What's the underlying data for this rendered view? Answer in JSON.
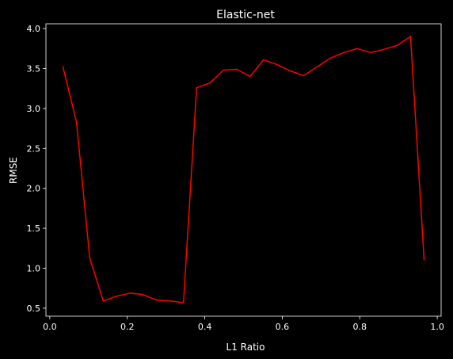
{
  "chart_data": {
    "type": "line",
    "title": "Elastic-net",
    "xlabel": "L1 Ratio",
    "ylabel": "RMSE",
    "xlim": [
      -0.01,
      1.01
    ],
    "ylim": [
      0.4,
      4.06
    ],
    "xticks": [
      0.0,
      0.2,
      0.4,
      0.6,
      0.8,
      1.0
    ],
    "xtick_labels": [
      "0.0",
      "0.2",
      "0.4",
      "0.6",
      "0.8",
      "1.0"
    ],
    "yticks": [
      0.5,
      1.0,
      1.5,
      2.0,
      2.5,
      3.0,
      3.5,
      4.0
    ],
    "ytick_labels": [
      "0.5",
      "1.0",
      "1.5",
      "2.0",
      "2.5",
      "3.0",
      "3.5",
      "4.0"
    ],
    "grid": false,
    "legend": "none",
    "background_color": "#000000",
    "foreground_color": "#ffffff",
    "series": [
      {
        "color": "#ff0000",
        "x": [
          0.034,
          0.069,
          0.103,
          0.138,
          0.172,
          0.207,
          0.241,
          0.276,
          0.31,
          0.345,
          0.379,
          0.414,
          0.448,
          0.483,
          0.517,
          0.552,
          0.586,
          0.621,
          0.655,
          0.69,
          0.724,
          0.759,
          0.793,
          0.828,
          0.862,
          0.897,
          0.931,
          0.966
        ],
        "y": [
          3.52,
          2.83,
          1.13,
          0.59,
          0.65,
          0.69,
          0.67,
          0.6,
          0.59,
          0.57,
          3.26,
          3.32,
          3.48,
          3.49,
          3.4,
          3.61,
          3.55,
          3.47,
          3.41,
          3.52,
          3.63,
          3.7,
          3.75,
          3.7,
          3.74,
          3.79,
          3.9,
          1.11
        ]
      }
    ]
  }
}
